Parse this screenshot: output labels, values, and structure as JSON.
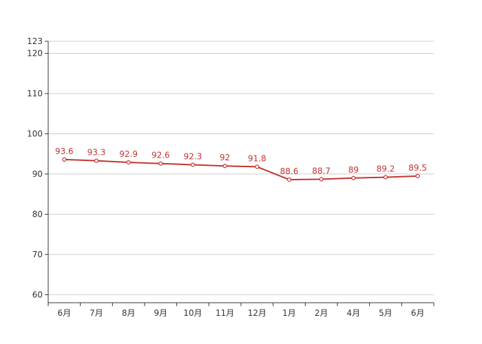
{
  "chart_data": {
    "type": "line",
    "categories": [
      "6月",
      "7月",
      "8月",
      "9月",
      "10月",
      "11月",
      "12月",
      "1月",
      "2月",
      "4月",
      "5月",
      "6月"
    ],
    "series": [
      {
        "values": [
          93.6,
          93.3,
          92.9,
          92.6,
          92.3,
          92,
          91.8,
          88.6,
          88.7,
          89,
          89.2,
          89.5
        ]
      }
    ],
    "data_labels": [
      "93.6",
      "93.3",
      "92.9",
      "92.6",
      "92.3",
      "92",
      "91.8",
      "88.6",
      "88.7",
      "89",
      "89.2",
      "89.5"
    ],
    "y_ticks": [
      60,
      70,
      80,
      90,
      100,
      110,
      120,
      123
    ],
    "y_tick_labels": [
      "60",
      "70",
      "80",
      "90",
      "100",
      "110",
      "120",
      "123"
    ],
    "ylim": [
      58,
      123
    ],
    "grid": true,
    "legend": "none",
    "colors": {
      "series": "#c23531",
      "grid": "#cccccc",
      "axis": "#333333"
    }
  }
}
